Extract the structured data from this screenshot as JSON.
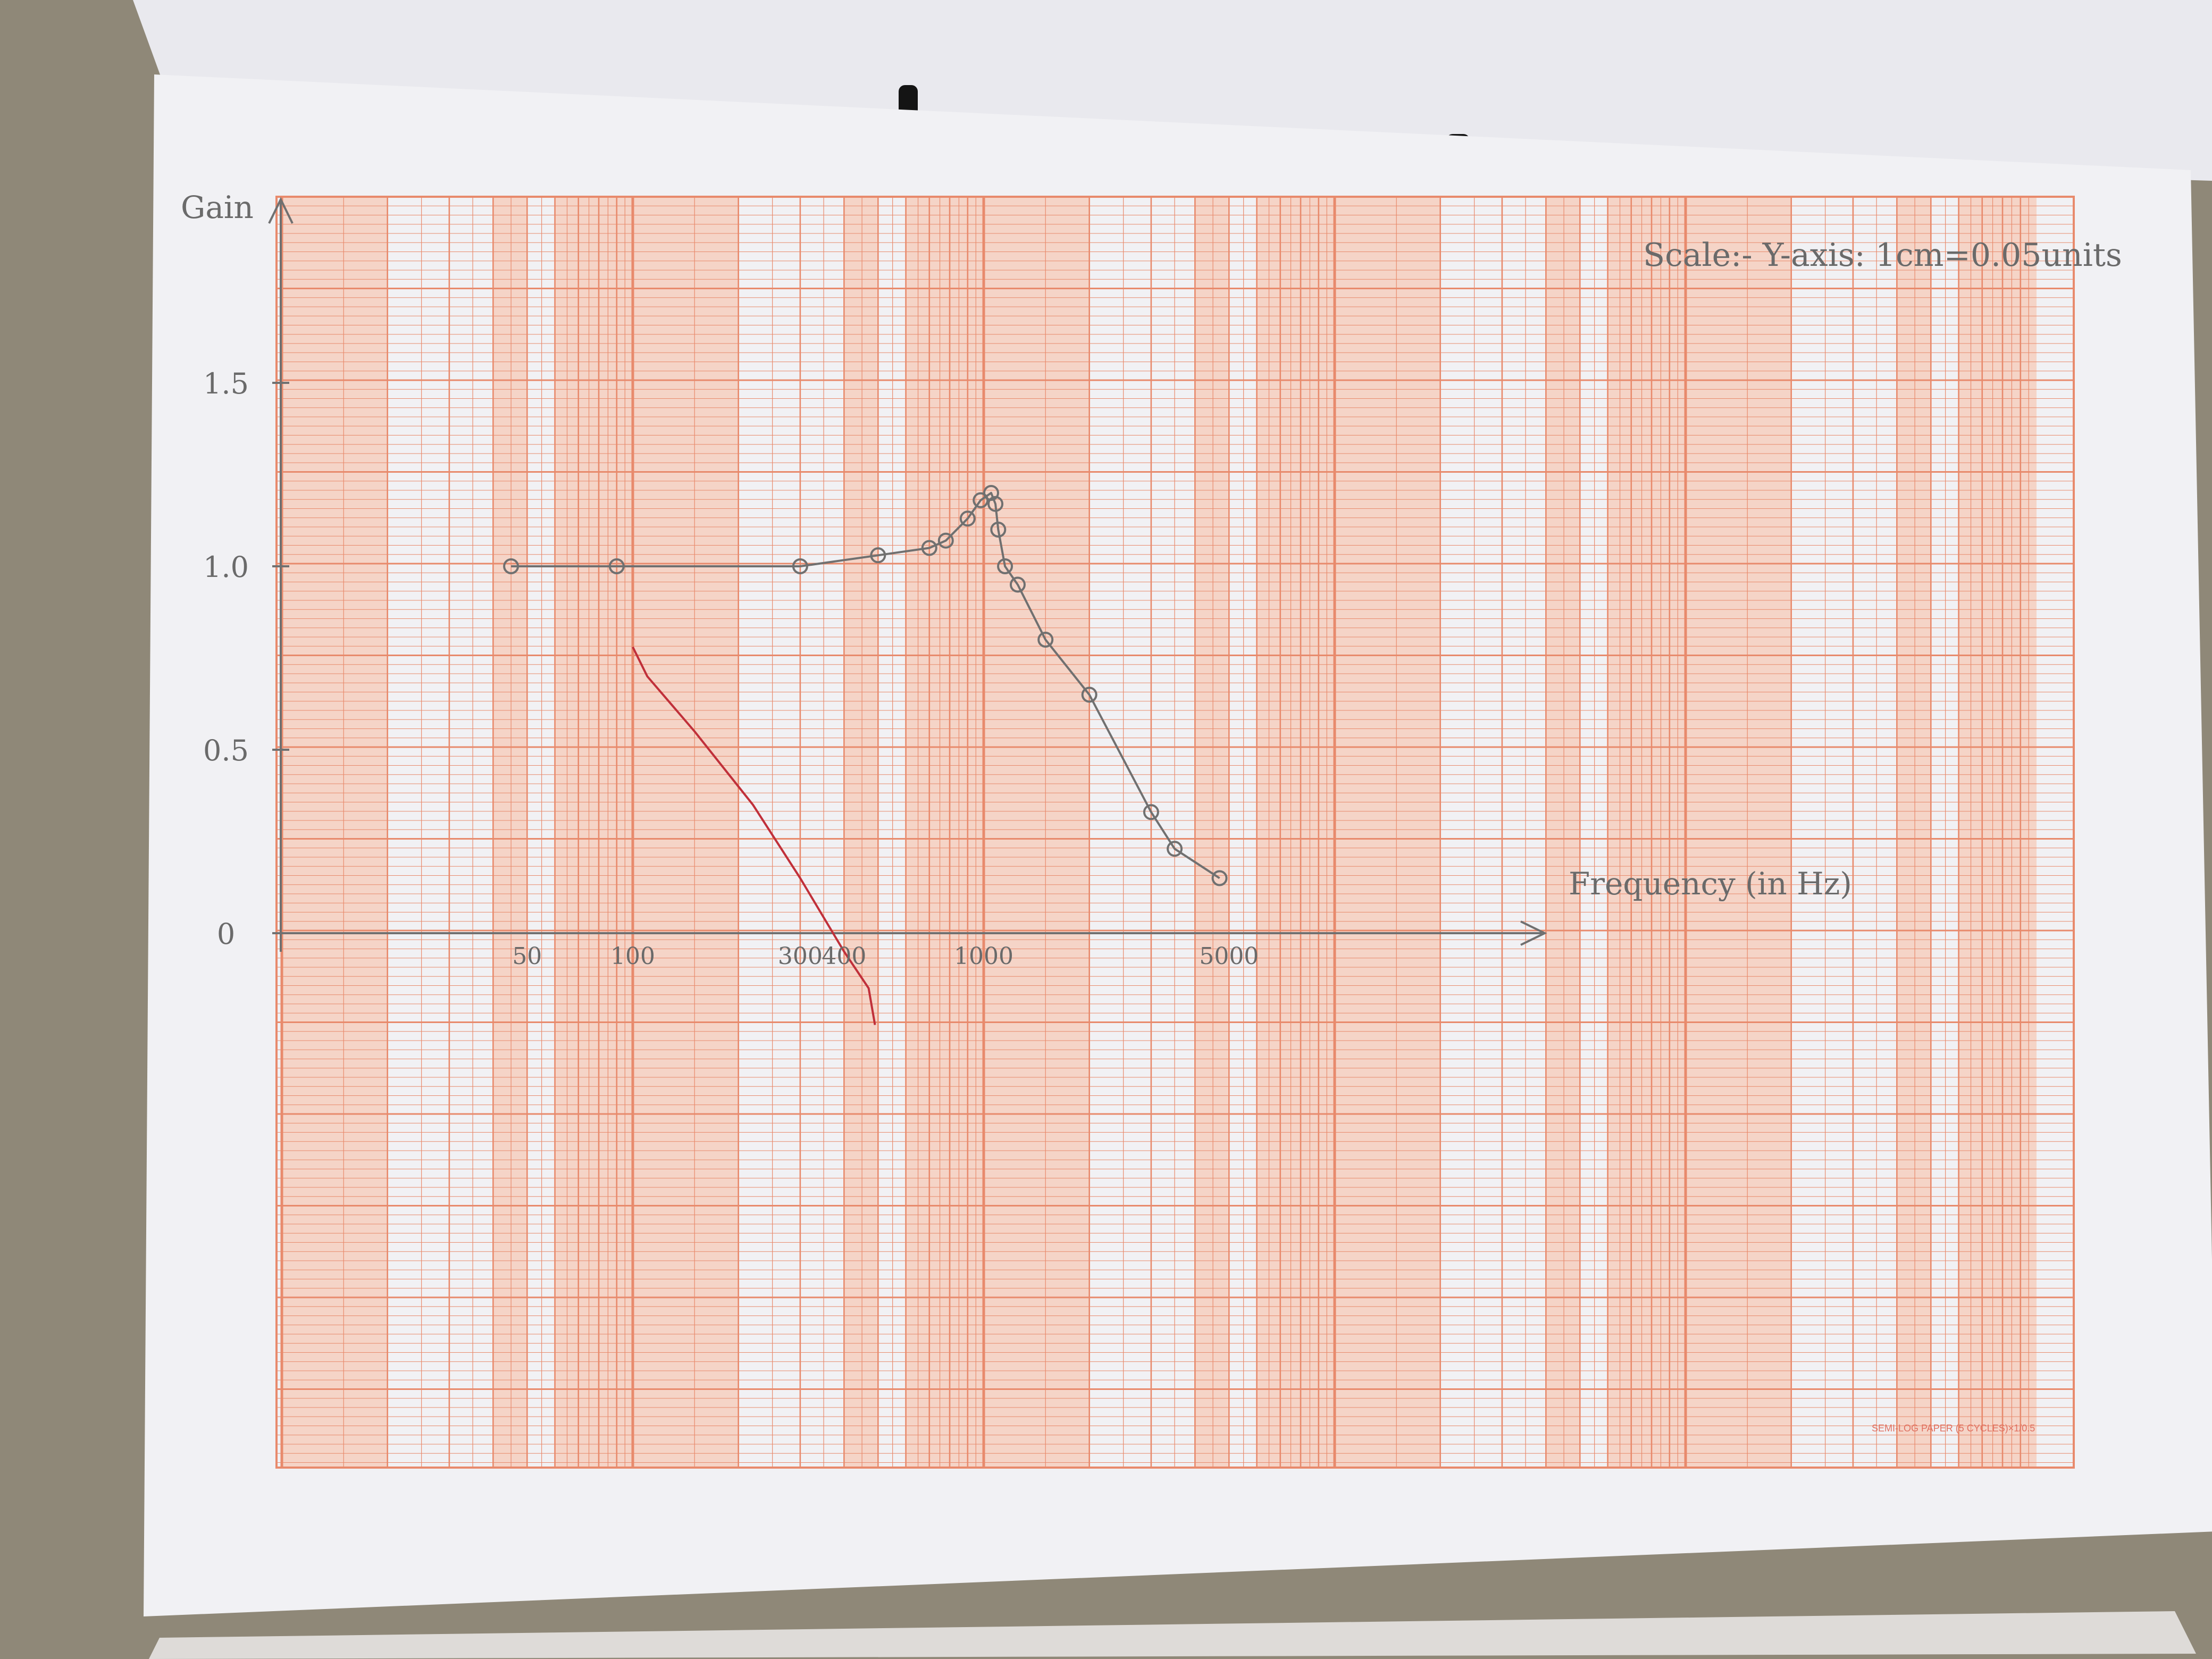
{
  "colors": {
    "desk": "#8f8878",
    "paper": "#f1f1f4",
    "grid": "#e88a6c",
    "band": "#f6cab8",
    "pencil": "#707070",
    "red_ink": "#c0303a"
  },
  "paper_footer": "SEMI-LOG PAPER (5 CYCLES)×1/0.5",
  "scale_note": "Scale:- Y-axis: 1cm=0.05units",
  "chart_data": {
    "type": "line",
    "xscale": "log",
    "title": "",
    "ylabel": "Gain",
    "xlabel": "Frequency (in Hz)",
    "xlim": [
      10,
      100000
    ],
    "ylim": [
      -0.5,
      2.0
    ],
    "y_tick_labels": [
      "0",
      "0.5",
      "1.0",
      "1.5"
    ],
    "y_ticks": [
      0,
      0.5,
      1.0,
      1.5
    ],
    "x_tick_labels": [
      "50",
      "100",
      "300",
      "400",
      "1000",
      "5000"
    ],
    "x_ticks": [
      50,
      100,
      300,
      400,
      1000,
      5000
    ],
    "series": [
      {
        "x": [
          45,
          90,
          300,
          500,
          700,
          780,
          900,
          980,
          1050,
          1080,
          1100,
          1150,
          1250,
          1500,
          2000,
          3000,
          3500,
          4700
        ],
        "y": [
          1.0,
          1.0,
          1.0,
          1.03,
          1.05,
          1.07,
          1.13,
          1.18,
          1.2,
          1.17,
          1.1,
          1.0,
          0.95,
          0.8,
          0.65,
          0.33,
          0.23,
          0.15
        ]
      },
      {
        "x": [
          100,
          110,
          150,
          220,
          300,
          400,
          470,
          490
        ],
        "y": [
          0.78,
          0.7,
          0.55,
          0.35,
          0.15,
          -0.05,
          -0.15,
          -0.25
        ]
      }
    ]
  }
}
